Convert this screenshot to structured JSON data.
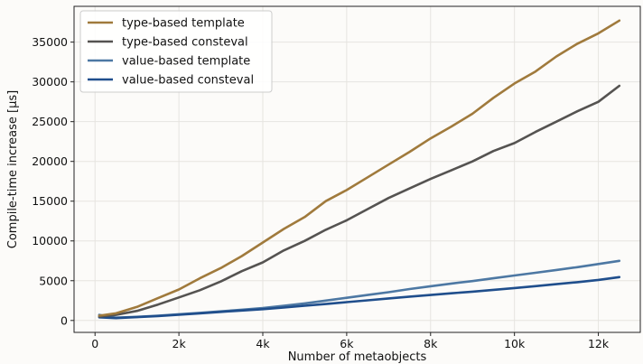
{
  "chart_data": {
    "type": "line",
    "xlabel": "Number of metaobjects",
    "ylabel": "Compile-time increase [µs]",
    "xlim": [
      -500,
      13000
    ],
    "ylim": [
      -1500,
      39500
    ],
    "x_ticks": [
      0,
      2000,
      4000,
      6000,
      8000,
      10000,
      12000
    ],
    "x_tick_labels": [
      "0",
      "2k",
      "4k",
      "6k",
      "8k",
      "10k",
      "12k"
    ],
    "y_ticks": [
      0,
      5000,
      10000,
      15000,
      20000,
      25000,
      30000,
      35000
    ],
    "y_tick_labels": [
      "0",
      "5000",
      "10000",
      "15000",
      "20000",
      "25000",
      "30000",
      "35000"
    ],
    "grid": true,
    "legend_position": "top-left",
    "series": [
      {
        "name": "type-based template",
        "color": "#a07a3c",
        "x": [
          100,
          500,
          1000,
          1500,
          2000,
          2500,
          3000,
          3500,
          4000,
          4500,
          5000,
          5500,
          6000,
          6500,
          7000,
          7500,
          8000,
          8500,
          9000,
          9500,
          10000,
          10500,
          11000,
          11500,
          12000,
          12500
        ],
        "y": [
          600,
          900,
          1700,
          2800,
          3900,
          5300,
          6600,
          8100,
          9800,
          11500,
          13000,
          15000,
          16400,
          18000,
          19600,
          21200,
          22900,
          24400,
          26000,
          28000,
          29800,
          31300,
          33200,
          34800,
          36100,
          37700
        ]
      },
      {
        "name": "type-based consteval",
        "color": "#555351",
        "x": [
          100,
          500,
          1000,
          1500,
          2000,
          2500,
          3000,
          3500,
          4000,
          4500,
          5000,
          5500,
          6000,
          6500,
          7000,
          7500,
          8000,
          8500,
          9000,
          9500,
          10000,
          10500,
          11000,
          11500,
          12000,
          12500
        ],
        "y": [
          500,
          700,
          1200,
          2000,
          2900,
          3800,
          4900,
          6200,
          7300,
          8800,
          10000,
          11400,
          12600,
          14000,
          15400,
          16600,
          17800,
          18900,
          20000,
          21300,
          22300,
          23700,
          25000,
          26300,
          27500,
          29500
        ]
      },
      {
        "name": "value-based template",
        "color": "#4d78a3",
        "x": [
          100,
          500,
          1000,
          1500,
          2000,
          2500,
          3000,
          3500,
          4000,
          4500,
          5000,
          5500,
          6000,
          6500,
          7000,
          7500,
          8000,
          8500,
          9000,
          9500,
          10000,
          10500,
          11000,
          11500,
          12000,
          12500
        ],
        "y": [
          700,
          350,
          450,
          600,
          780,
          950,
          1150,
          1350,
          1550,
          1850,
          2150,
          2500,
          2850,
          3200,
          3550,
          3950,
          4300,
          4650,
          4950,
          5300,
          5650,
          6000,
          6350,
          6700,
          7100,
          7500
        ]
      },
      {
        "name": "value-based consteval",
        "color": "#1f4e8c",
        "x": [
          100,
          500,
          1000,
          1500,
          2000,
          2500,
          3000,
          3500,
          4000,
          4500,
          5000,
          5500,
          6000,
          6500,
          7000,
          7500,
          8000,
          8500,
          9000,
          9500,
          10000,
          10500,
          11000,
          11500,
          12000,
          12500
        ],
        "y": [
          400,
          300,
          420,
          560,
          720,
          900,
          1080,
          1250,
          1420,
          1620,
          1850,
          2070,
          2300,
          2530,
          2770,
          3000,
          3200,
          3420,
          3620,
          3850,
          4080,
          4320,
          4560,
          4820,
          5100,
          5450
        ]
      }
    ]
  }
}
